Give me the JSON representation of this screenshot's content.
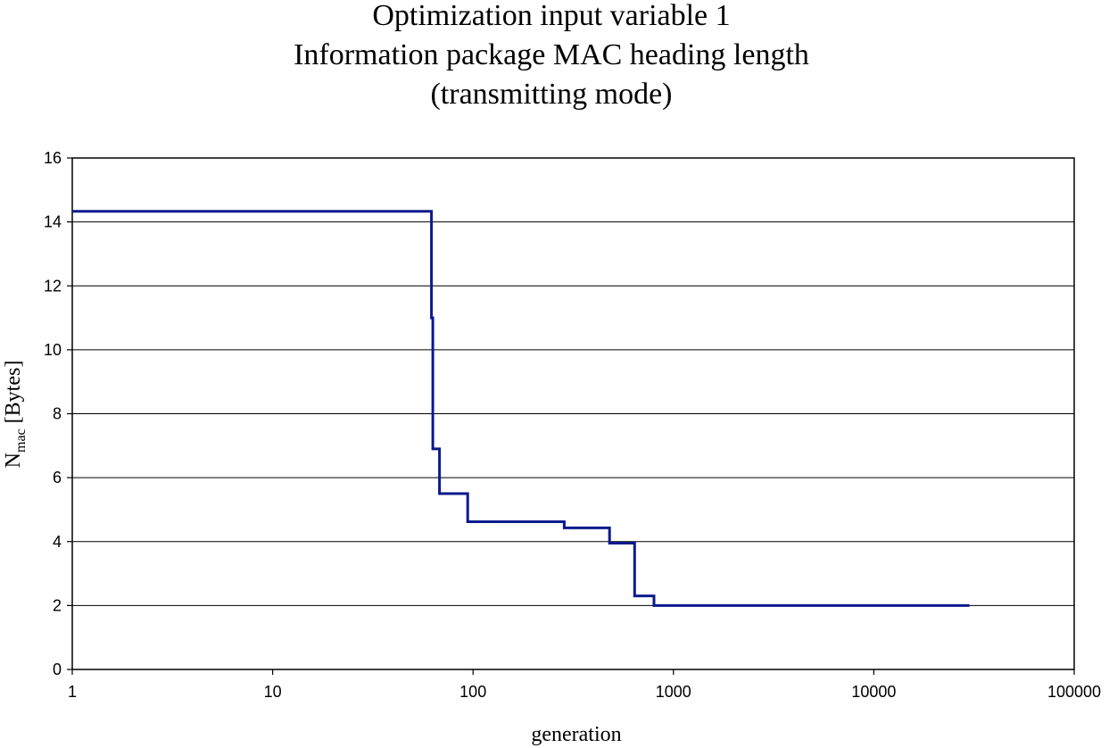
{
  "chart_data": {
    "type": "line",
    "title_lines": [
      "Optimization input variable 1",
      "Information package MAC heading length",
      "(transmitting mode)"
    ],
    "xlabel": "generation",
    "ylabel": {
      "main": "N",
      "subscript": "mac",
      "suffix": " [Bytes]"
    },
    "x_scale": "log",
    "xlim": [
      1,
      100000
    ],
    "ylim": [
      0,
      16
    ],
    "x_ticks": [
      1,
      10,
      100,
      1000,
      10000,
      100000
    ],
    "x_tick_labels": [
      "1",
      "10",
      "100",
      "1000",
      "10000",
      "100000"
    ],
    "y_ticks": [
      0,
      2,
      4,
      6,
      8,
      10,
      12,
      14,
      16
    ],
    "y_tick_labels": [
      "0",
      "2",
      "4",
      "6",
      "8",
      "10",
      "12",
      "14",
      "16"
    ],
    "grid": "horizontal",
    "legend": "none",
    "series": [
      {
        "line_style": "step",
        "color": "#0b1a8c",
        "x": [
          1,
          62,
          62,
          63,
          63,
          68,
          68,
          94,
          94,
          285,
          285,
          480,
          480,
          640,
          640,
          800,
          800,
          30000
        ],
        "y": [
          14.33,
          14.33,
          11.0,
          11.0,
          6.9,
          6.9,
          5.5,
          5.5,
          4.62,
          4.62,
          4.43,
          4.43,
          3.95,
          3.95,
          2.3,
          2.3,
          2.0,
          2.0
        ]
      }
    ]
  }
}
